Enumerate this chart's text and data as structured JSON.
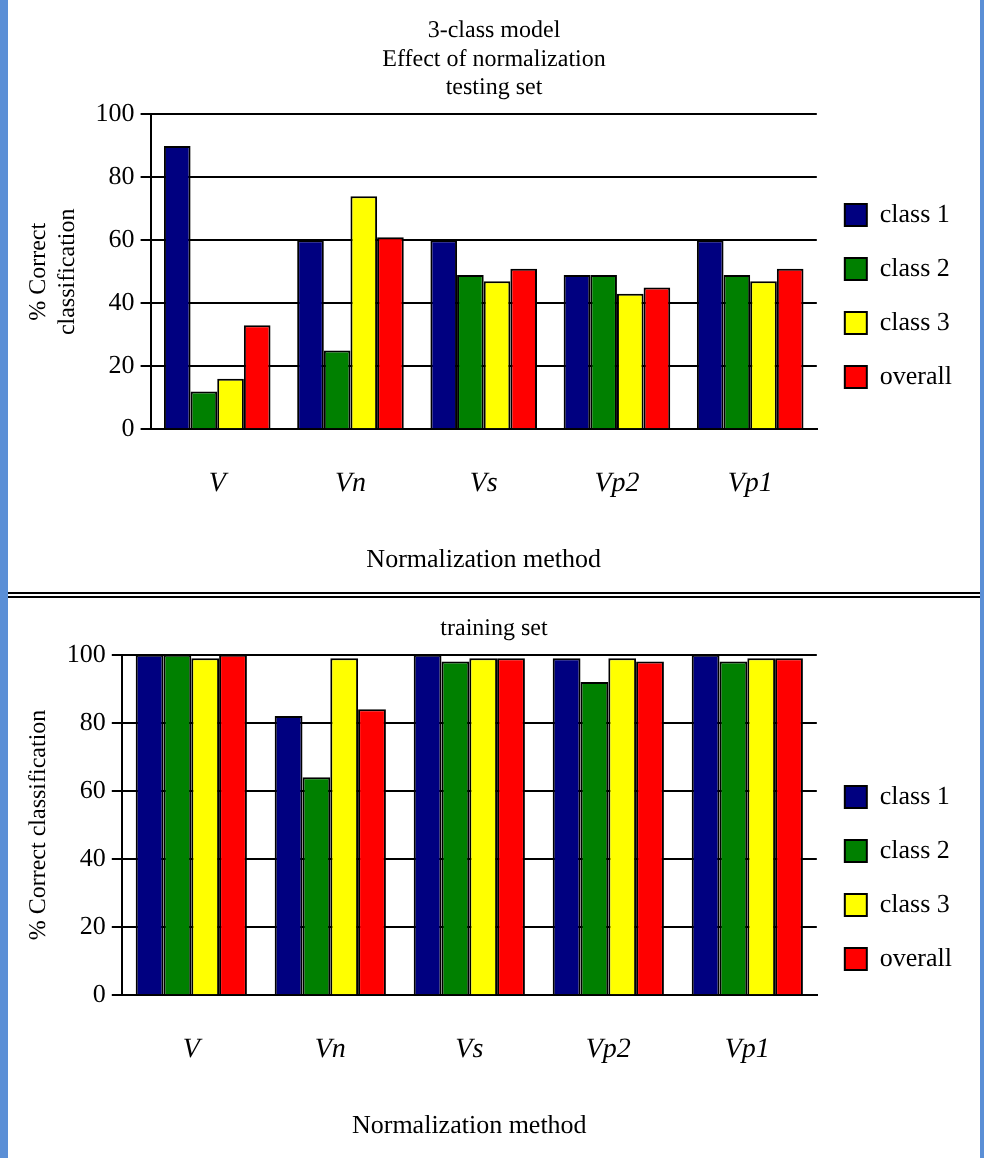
{
  "chart_data": [
    {
      "type": "bar",
      "title": "3-class model\nEffect of normalization\ntesting set",
      "xlabel": "Normalization method",
      "ylabel": "% Correct\nclassification",
      "categories": [
        "V",
        "Vn",
        "Vs",
        "Vp2",
        "Vp1"
      ],
      "series": [
        {
          "name": "class 1",
          "color": "#000080",
          "values": [
            90,
            60,
            60,
            49,
            60
          ]
        },
        {
          "name": "class 2",
          "color": "#008000",
          "values": [
            12,
            25,
            49,
            49,
            49
          ]
        },
        {
          "name": "class 3",
          "color": "#ffff00",
          "values": [
            16,
            74,
            47,
            43,
            47
          ]
        },
        {
          "name": "overall",
          "color": "#ff0000",
          "values": [
            33,
            61,
            51,
            45,
            51
          ]
        }
      ],
      "ylim": [
        0,
        100
      ],
      "yticks": [
        0,
        20,
        40,
        60,
        80,
        100
      ],
      "grid": "y",
      "legend": "right"
    },
    {
      "type": "bar",
      "title": "training set",
      "xlabel": "Normalization method",
      "ylabel": "% Correct classification",
      "categories": [
        "V",
        "Vn",
        "Vs",
        "Vp2",
        "Vp1"
      ],
      "series": [
        {
          "name": "class 1",
          "color": "#000080",
          "values": [
            100,
            82,
            100,
            99,
            100
          ]
        },
        {
          "name": "class 2",
          "color": "#008000",
          "values": [
            100,
            64,
            98,
            92,
            98
          ]
        },
        {
          "name": "class 3",
          "color": "#ffff00",
          "values": [
            99,
            99,
            99,
            99,
            99
          ]
        },
        {
          "name": "overall",
          "color": "#ff0000",
          "values": [
            100,
            84,
            99,
            98,
            99
          ]
        }
      ],
      "ylim": [
        0,
        100
      ],
      "yticks": [
        0,
        20,
        40,
        60,
        80,
        100
      ],
      "grid": "y",
      "legend": "right"
    }
  ]
}
